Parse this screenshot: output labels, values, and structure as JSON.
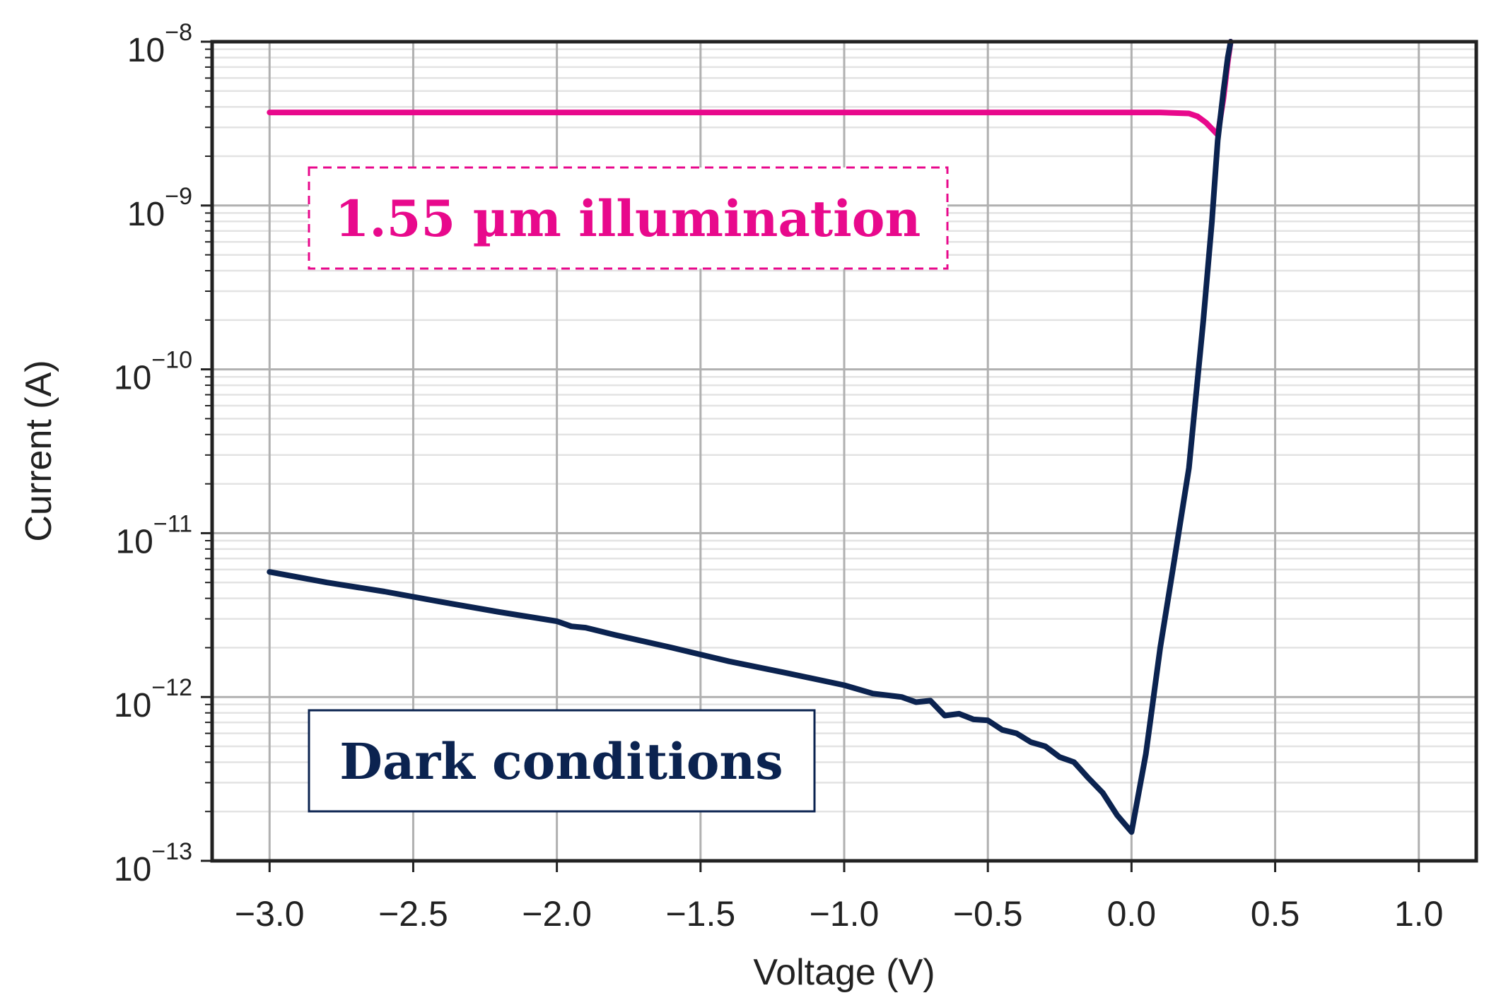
{
  "chart_data": {
    "type": "line",
    "xlabel": "Voltage (V)",
    "ylabel": "Current (A)",
    "xlim": [
      -3.2,
      1.2
    ],
    "ylim": [
      1e-13,
      1e-08
    ],
    "yscale": "log",
    "grid": true,
    "x_ticks": [
      -3.0,
      -2.5,
      -2.0,
      -1.5,
      -1.0,
      -0.5,
      0.0,
      0.5,
      1.0
    ],
    "x_tick_labels": [
      "−3.0",
      "−2.5",
      "−2.0",
      "−1.5",
      "−1.0",
      "−0.5",
      "0.0",
      "0.5",
      "1.0"
    ],
    "y_ticks": [
      {
        "value": 1e-08,
        "mantissa": "10",
        "exponent": "−8"
      },
      {
        "value": 1e-09,
        "mantissa": "10",
        "exponent": "−9"
      },
      {
        "value": 1e-10,
        "mantissa": "10",
        "exponent": "−10"
      },
      {
        "value": 1e-11,
        "mantissa": "10",
        "exponent": "−11"
      },
      {
        "value": 1e-12,
        "mantissa": "10",
        "exponent": "−12"
      },
      {
        "value": 1e-13,
        "mantissa": "10",
        "exponent": "−13"
      }
    ],
    "series": [
      {
        "color": "#e8098c",
        "x": [
          -3.0,
          -2.5,
          -2.0,
          -1.5,
          -1.0,
          -0.5,
          0.0,
          0.1,
          0.2,
          0.23,
          0.26,
          0.3,
          0.32,
          0.335,
          0.345
        ],
        "y": [
          3.7e-09,
          3.7e-09,
          3.7e-09,
          3.7e-09,
          3.7e-09,
          3.7e-09,
          3.7e-09,
          3.7e-09,
          3.65e-09,
          3.5e-09,
          3.2e-09,
          2.7e-09,
          4.5e-09,
          7.5e-09,
          1e-08
        ]
      },
      {
        "color": "#0b2350",
        "x": [
          -3.0,
          -2.8,
          -2.6,
          -2.4,
          -2.2,
          -2.0,
          -1.95,
          -1.9,
          -1.8,
          -1.6,
          -1.4,
          -1.2,
          -1.0,
          -0.9,
          -0.8,
          -0.75,
          -0.7,
          -0.65,
          -0.6,
          -0.55,
          -0.5,
          -0.45,
          -0.4,
          -0.35,
          -0.3,
          -0.25,
          -0.2,
          -0.15,
          -0.1,
          -0.05,
          0.0,
          0.05,
          0.1,
          0.15,
          0.2,
          0.25,
          0.28,
          0.3,
          0.32,
          0.335,
          0.345
        ],
        "y": [
          5.8e-12,
          5e-12,
          4.4e-12,
          3.8e-12,
          3.3e-12,
          2.9e-12,
          2.7e-12,
          2.65e-12,
          2.4e-12,
          2e-12,
          1.65e-12,
          1.4e-12,
          1.18e-12,
          1.05e-12,
          1e-12,
          9.3e-13,
          9.5e-13,
          7.7e-13,
          7.9e-13,
          7.3e-13,
          7.2e-13,
          6.3e-13,
          6e-13,
          5.3e-13,
          5e-13,
          4.3e-13,
          4e-13,
          3.2e-13,
          2.6e-13,
          1.9e-13,
          1.5e-13,
          4.5e-13,
          2e-12,
          7e-12,
          2.5e-11,
          2e-10,
          8e-10,
          2.5e-09,
          5e-09,
          8e-09,
          1e-08
        ]
      }
    ],
    "annotations": [
      {
        "text": "1.55 µm illumination",
        "color": "#e8098c",
        "border": "dashed"
      },
      {
        "text": "Dark conditions",
        "color": "#0b2350",
        "border": "solid"
      }
    ]
  }
}
